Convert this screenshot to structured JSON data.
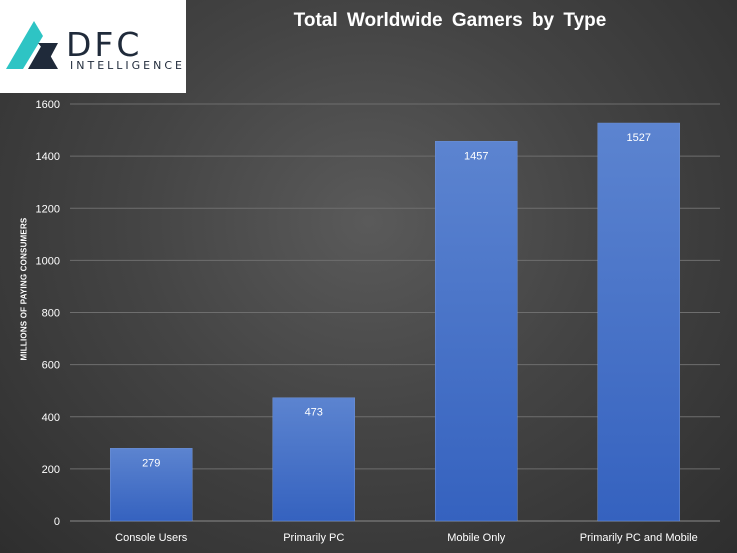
{
  "logo": {
    "word": "DFC",
    "sub": "INTELLIGENCE"
  },
  "chart_data": {
    "type": "bar",
    "title": "Total Worldwide Gamers by Type",
    "xlabel": "",
    "ylabel": "MILLIONS OF PAYING CONSUMERS",
    "categories": [
      "Console Users",
      "Primarily PC",
      "Mobile Only",
      "Primarily PC and Mobile"
    ],
    "values": [
      279,
      473,
      1457,
      1527
    ],
    "ylim": [
      0,
      1600
    ],
    "yticks": [
      0,
      200,
      400,
      600,
      800,
      1000,
      1200,
      1400,
      1600
    ],
    "grid": true,
    "data_labels": true,
    "colors": {
      "bar_top": "#5c84d0",
      "bar_bottom": "#3562bf",
      "text": "#ffffff",
      "grid": "#6e6e6e"
    }
  }
}
